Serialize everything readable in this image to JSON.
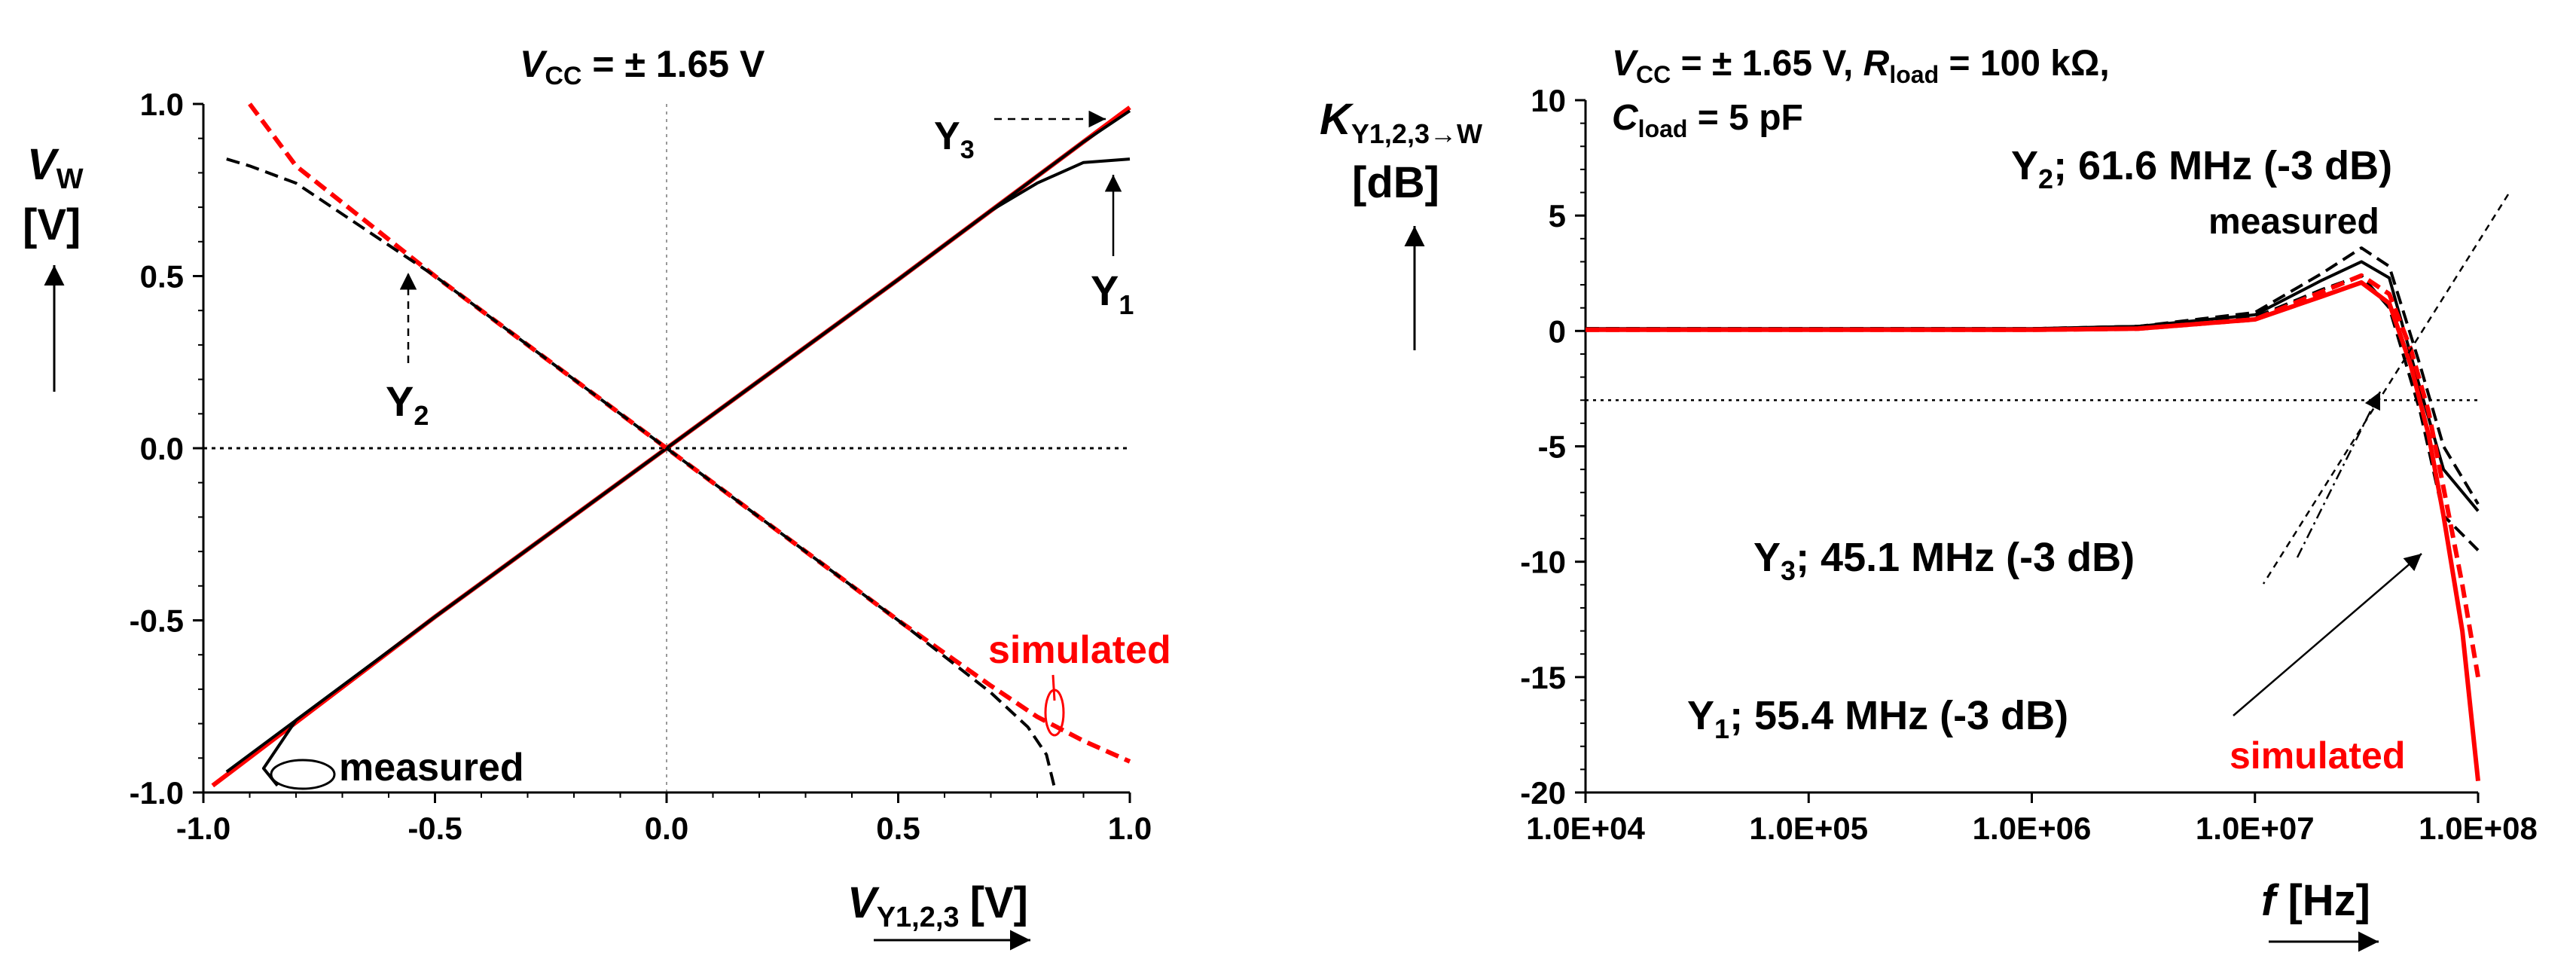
{
  "chart_data": [
    {
      "type": "line",
      "title": "V_CC = ± 1.65 V",
      "title_parts": {
        "v": "V",
        "sub": "CC",
        "rest": " = ± 1.65 V"
      },
      "xlabel": "V_Y1,2,3 [V]",
      "xlabel_parts": {
        "v": "V",
        "sub": "Y1,2,3",
        "unit": "[V]"
      },
      "ylabel": "V_W [V]",
      "ylabel_parts": {
        "v": "V",
        "sub": "W",
        "unit": "[V]"
      },
      "xlim": [
        -1.0,
        1.0
      ],
      "ylim": [
        -1.0,
        1.0
      ],
      "x_ticks": [
        "-1.0",
        "-0.5",
        "0.0",
        "0.5",
        "1.0"
      ],
      "y_ticks": [
        "1.0",
        "0.5",
        "0.0",
        "-0.5",
        "-1.0"
      ],
      "annotations": {
        "y3": {
          "base": "Y",
          "sub": "3"
        },
        "y1": {
          "base": "Y",
          "sub": "1"
        },
        "y2": {
          "base": "Y",
          "sub": "2"
        },
        "simulated": "simulated",
        "measured": "measured"
      },
      "series": [
        {
          "name": "Y1,Y3 simulated",
          "color": "#ff0000",
          "style": "solid",
          "x": [
            -0.98,
            -0.5,
            0,
            0.5,
            0.98,
            1.0
          ],
          "y": [
            -0.98,
            -0.49,
            0.0,
            0.49,
            0.97,
            0.99
          ]
        },
        {
          "name": "Y3 measured",
          "color": "#000000",
          "style": "solid",
          "x": [
            -0.95,
            -0.5,
            0,
            0.5,
            0.9,
            1.0
          ],
          "y": [
            -0.94,
            -0.49,
            0.0,
            0.49,
            0.89,
            0.98
          ]
        },
        {
          "name": "Y1 measured",
          "color": "#000000",
          "style": "solid",
          "x": [
            -0.84,
            -0.87,
            -0.8,
            -0.5,
            0,
            0.5,
            0.7,
            0.8,
            0.9,
            1.0
          ],
          "y": [
            -0.98,
            -0.93,
            -0.79,
            -0.49,
            0.0,
            0.49,
            0.69,
            0.77,
            0.83,
            0.84
          ]
        },
        {
          "name": "Y2 simulated",
          "color": "#ff0000",
          "style": "dashed",
          "x": [
            -0.9,
            -0.85,
            -0.8,
            -0.5,
            0,
            0.5,
            0.7,
            0.8,
            0.9,
            1.0
          ],
          "y": [
            1.0,
            0.91,
            0.82,
            0.5,
            0.0,
            -0.5,
            -0.69,
            -0.78,
            -0.85,
            -0.91
          ]
        },
        {
          "name": "Y2 measured",
          "color": "#000000",
          "style": "dashed",
          "x": [
            -0.95,
            -0.9,
            -0.8,
            -0.5,
            0,
            0.5,
            0.7,
            0.78,
            0.82,
            0.84
          ],
          "y": [
            0.84,
            0.82,
            0.77,
            0.5,
            0.0,
            -0.5,
            -0.71,
            -0.81,
            -0.89,
            -1.0
          ]
        }
      ]
    },
    {
      "type": "line",
      "title": "V_CC = ± 1.65 V, R_load = 100 kΩ, C_load = 5 pF",
      "title_parts": {
        "line1_v": "V",
        "line1_sub": "CC",
        "line1_rest": " = ± 1.65 V, ",
        "r": "R",
        "r_sub": "load",
        "r_rest": " = 100 kΩ,",
        "c": "C",
        "c_sub": "load",
        "c_rest": " = 5 pF"
      },
      "xlabel": "f [Hz]",
      "xlabel_parts": {
        "v": "f",
        "unit": " [Hz]"
      },
      "ylabel": "K_Y1,2,3→W [dB]",
      "ylabel_parts": {
        "v": "K",
        "sub": "Y1,2,3→W",
        "unit": "[dB]"
      },
      "xscale": "log",
      "xlim": [
        10000,
        100000000
      ],
      "ylim": [
        -20,
        10
      ],
      "x_ticks": [
        "1.0E+04",
        "1.0E+05",
        "1.0E+06",
        "1.0E+07",
        "1.0E+08"
      ],
      "y_ticks": [
        "10",
        "5",
        "0",
        "-5",
        "-10",
        "-15",
        "-20"
      ],
      "reference_level_db": -3,
      "annotations": {
        "y2": {
          "base": "Y",
          "sub": "2",
          "text": "; 61.6 MHz (-3 dB)"
        },
        "y3": {
          "base": "Y",
          "sub": "3",
          "text": "; 45.1 MHz (-3 dB)"
        },
        "y1": {
          "base": "Y",
          "sub": "1",
          "text": "; 55.4 MHz (-3 dB)"
        },
        "measured": "measured",
        "simulated": "simulated"
      },
      "series": [
        {
          "name": "Y2 measured",
          "color": "#000000",
          "style": "dashed",
          "f": [
            10000,
            1000000,
            3000000,
            10000000,
            20000000,
            30000000,
            40000000,
            55000000,
            70000000,
            100000000
          ],
          "db": [
            0.1,
            0.1,
            0.2,
            0.8,
            2.5,
            3.6,
            2.8,
            -1.5,
            -5.0,
            -7.5
          ]
        },
        {
          "name": "Y1 measured",
          "color": "#000000",
          "style": "solid",
          "f": [
            10000,
            1000000,
            3000000,
            10000000,
            20000000,
            30000000,
            40000000,
            55000000,
            70000000,
            100000000
          ],
          "db": [
            0.1,
            0.1,
            0.2,
            0.7,
            2.2,
            3.0,
            2.3,
            -2.5,
            -6.0,
            -7.8
          ]
        },
        {
          "name": "Y3 measured",
          "color": "#000000",
          "style": "dashed",
          "f": [
            10000,
            1000000,
            3000000,
            10000000,
            20000000,
            30000000,
            40000000,
            55000000,
            70000000,
            100000000
          ],
          "db": [
            0.1,
            0.1,
            0.2,
            0.6,
            1.8,
            2.4,
            1.0,
            -3.5,
            -8.0,
            -9.5
          ]
        },
        {
          "name": "simulated (solid)",
          "color": "#ff0000",
          "style": "solid",
          "f": [
            10000,
            1000000,
            3000000,
            10000000,
            20000000,
            30000000,
            40000000,
            50000000,
            60000000,
            70000000,
            85000000,
            100000000
          ],
          "db": [
            0.05,
            0.05,
            0.1,
            0.5,
            1.5,
            2.1,
            1.2,
            -1.5,
            -4.5,
            -8.0,
            -13.0,
            -19.5
          ]
        },
        {
          "name": "simulated (dashed)",
          "color": "#ff0000",
          "style": "dashed",
          "f": [
            10000,
            1000000,
            3000000,
            10000000,
            20000000,
            30000000,
            40000000,
            50000000,
            60000000,
            70000000,
            85000000,
            100000000
          ],
          "db": [
            0.05,
            0.05,
            0.1,
            0.5,
            1.7,
            2.4,
            1.6,
            -0.8,
            -3.5,
            -6.8,
            -11.0,
            -15.0
          ]
        }
      ]
    }
  ]
}
